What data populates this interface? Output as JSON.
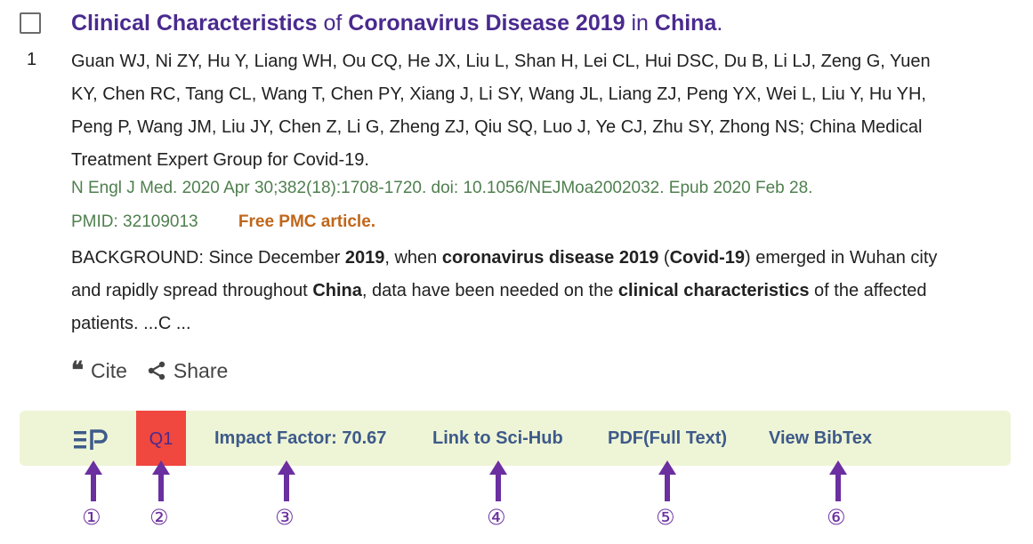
{
  "result": {
    "number": "1",
    "title_parts": [
      {
        "text": "Clinical Characteristics",
        "bold": true
      },
      {
        "text": " of ",
        "bold": false
      },
      {
        "text": "Coronavirus Disease 2019",
        "bold": true
      },
      {
        "text": " in ",
        "bold": false
      },
      {
        "text": "China",
        "bold": true
      },
      {
        "text": ".",
        "bold": false
      }
    ],
    "authors": "Guan WJ, Ni ZY, Hu Y, Liang WH, Ou CQ, He JX, Liu L, Shan H, Lei CL, Hui DSC, Du B, Li LJ, Zeng G, Yuen KY, Chen RC, Tang CL, Wang T, Chen PY, Xiang J, Li SY, Wang JL, Liang ZJ, Peng YX, Wei L, Liu Y, Hu YH, Peng P, Wang JM, Liu JY, Chen Z, Li G, Zheng ZJ, Qiu SQ, Luo J, Ye CJ, Zhu SY, Zhong NS; China Medical Treatment Expert Group for Covid-19.",
    "citation": "N Engl J Med. 2020 Apr 30;382(18):1708-1720. doi: 10.1056/NEJMoa2002032. Epub 2020 Feb 28.",
    "pmid": "PMID: 32109013",
    "free_pmc": "Free PMC article.",
    "snippet_parts": [
      {
        "text": "BACKGROUND: Since December ",
        "bold": false
      },
      {
        "text": "2019",
        "bold": true
      },
      {
        "text": ", when ",
        "bold": false
      },
      {
        "text": "coronavirus disease 2019",
        "bold": true
      },
      {
        "text": " (",
        "bold": false
      },
      {
        "text": "Covid-19",
        "bold": true
      },
      {
        "text": ") emerged in Wuhan city and rapidly spread throughout ",
        "bold": false
      },
      {
        "text": "China",
        "bold": true
      },
      {
        "text": ", data have been needed on the ",
        "bold": false
      },
      {
        "text": "clinical characteristics",
        "bold": true
      },
      {
        "text": " of the affected patients. ...C ...",
        "bold": false
      }
    ],
    "cite_label": "Cite",
    "share_label": "Share"
  },
  "toolbar": {
    "quartile": "Q1",
    "impact_factor": "Impact Factor: 70.67",
    "scihub": "Link to Sci-Hub",
    "pdf": "PDF(Full Text)",
    "bibtex": "View BibTex",
    "accent": "#f0473f",
    "background": "#eef5d6"
  },
  "annotations": [
    "①",
    "②",
    "③",
    "④",
    "⑤",
    "⑥"
  ],
  "colors": {
    "title": "#4a2a8f",
    "citation": "#4f7f4f",
    "free_pmc": "#c0661a",
    "arrow": "#6b2fa0"
  }
}
